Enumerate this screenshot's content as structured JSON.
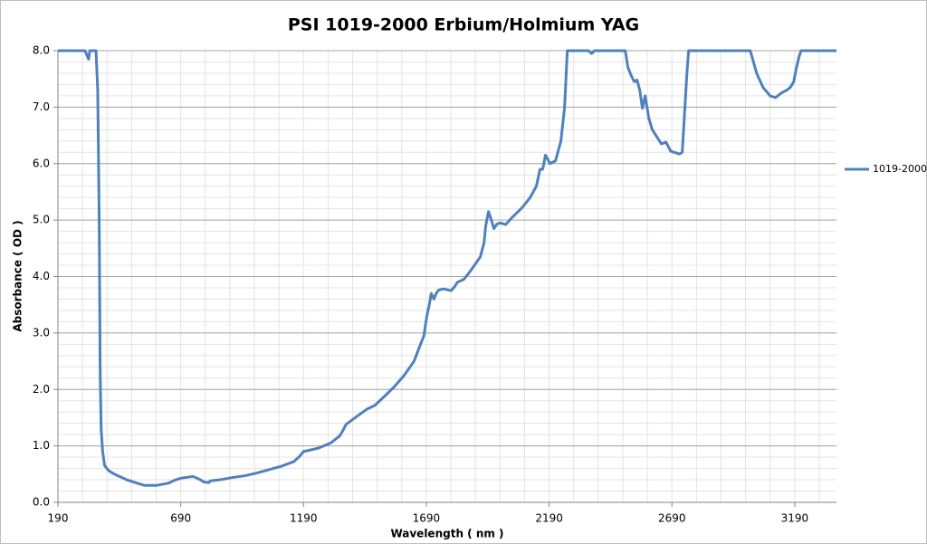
{
  "chart_data": {
    "type": "line",
    "title": "PSI  1019-2000 Erbium/Holmium YAG",
    "x_label": "Wavelength ( nm )",
    "y_label": "Absorbance ( OD )",
    "xlim": [
      190,
      3360
    ],
    "xticks": [
      190,
      690,
      1190,
      1690,
      2190,
      2690,
      3190
    ],
    "ylim": [
      0,
      8
    ],
    "yticks": [
      {
        "value": 0,
        "label": "0.0"
      },
      {
        "value": 1,
        "label": "1.0"
      },
      {
        "value": 2,
        "label": "2.0"
      },
      {
        "value": 3,
        "label": "3.0"
      },
      {
        "value": 4,
        "label": "4.0"
      },
      {
        "value": 5,
        "label": "5.0"
      },
      {
        "value": 6,
        "label": "6.0"
      },
      {
        "value": 7,
        "label": "7.0"
      },
      {
        "value": 8,
        "label": "8.0"
      }
    ],
    "grid": true,
    "y_minor_step": 0.2,
    "x_minor_step": 100,
    "legend": "right",
    "series": [
      {
        "name": "1019-2000",
        "color": "#4f81bd",
        "x": [
          190,
          300,
          310,
          315,
          320,
          340,
          345,
          352,
          358,
          362,
          366,
          372,
          380,
          397,
          420,
          470,
          520,
          544,
          590,
          640,
          670,
          692,
          710,
          740,
          770,
          784,
          805,
          810,
          850,
          900,
          950,
          1000,
          1050,
          1100,
          1150,
          1175,
          1190,
          1210,
          1250,
          1300,
          1338,
          1350,
          1363,
          1400,
          1448,
          1481,
          1520,
          1560,
          1600,
          1640,
          1662,
          1680,
          1692,
          1702,
          1710,
          1721,
          1730,
          1740,
          1760,
          1791,
          1805,
          1817,
          1843,
          1870,
          1910,
          1925,
          1932,
          1943,
          1955,
          1965,
          1978,
          1991,
          2013,
          2040,
          2080,
          2113,
          2138,
          2153,
          2164,
          2175,
          2194,
          2216,
          2238,
          2253,
          2264,
          2350,
          2363,
          2375,
          2500,
          2511,
          2525,
          2537,
          2548,
          2559,
          2570,
          2581,
          2596,
          2610,
          2647,
          2666,
          2685,
          2721,
          2732,
          2743,
          2751,
          2758,
          3009,
          3035,
          3061,
          3090,
          3112,
          3135,
          3157,
          3172,
          3186,
          3197,
          3208,
          3216,
          3360
        ],
        "values": [
          8,
          8,
          7.9,
          7.85,
          8,
          8,
          8,
          7.3,
          5.0,
          2.3,
          1.3,
          0.9,
          0.65,
          0.56,
          0.5,
          0.4,
          0.33,
          0.3,
          0.3,
          0.34,
          0.4,
          0.43,
          0.44,
          0.46,
          0.4,
          0.36,
          0.35,
          0.38,
          0.4,
          0.44,
          0.47,
          0.52,
          0.58,
          0.64,
          0.72,
          0.82,
          0.9,
          0.92,
          0.96,
          1.05,
          1.18,
          1.27,
          1.38,
          1.5,
          1.65,
          1.72,
          1.88,
          2.05,
          2.25,
          2.5,
          2.75,
          2.95,
          3.3,
          3.5,
          3.7,
          3.6,
          3.7,
          3.76,
          3.78,
          3.75,
          3.82,
          3.9,
          3.95,
          4.1,
          4.35,
          4.6,
          4.9,
          5.15,
          5.0,
          4.85,
          4.93,
          4.95,
          4.92,
          5.05,
          5.22,
          5.4,
          5.6,
          5.9,
          5.9,
          6.15,
          6.0,
          6.05,
          6.4,
          7.0,
          8,
          8,
          7.95,
          8,
          8,
          7.7,
          7.55,
          7.45,
          7.48,
          7.3,
          6.98,
          7.2,
          6.8,
          6.6,
          6.35,
          6.38,
          6.22,
          6.17,
          6.2,
          7.0,
          7.6,
          8,
          8,
          7.6,
          7.35,
          7.2,
          7.17,
          7.25,
          7.3,
          7.35,
          7.45,
          7.7,
          7.9,
          8,
          8
        ]
      }
    ]
  }
}
